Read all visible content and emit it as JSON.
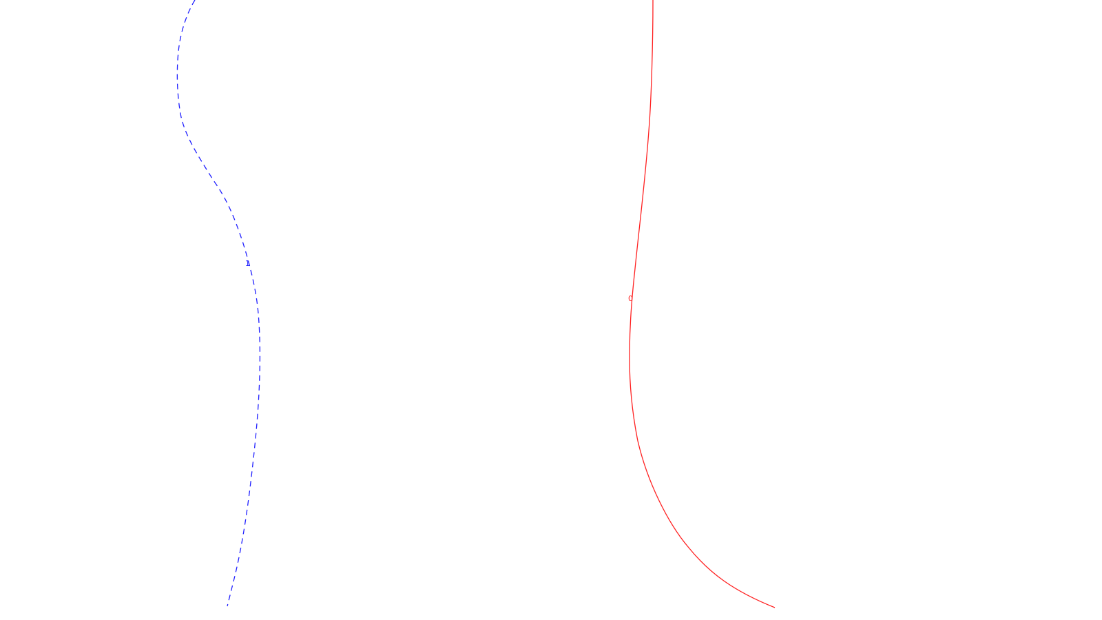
{
  "colors": {
    "background": "#ffffff",
    "curve_dashed": "#1f1fff",
    "curve_solid": "#ff2020"
  },
  "curves": [
    {
      "id": "dashed-contour",
      "line_style": "dashed",
      "color": "#1f1fff",
      "label": "1"
    },
    {
      "id": "solid-contour",
      "line_style": "solid",
      "color": "#ff2020",
      "label": "0"
    }
  ]
}
